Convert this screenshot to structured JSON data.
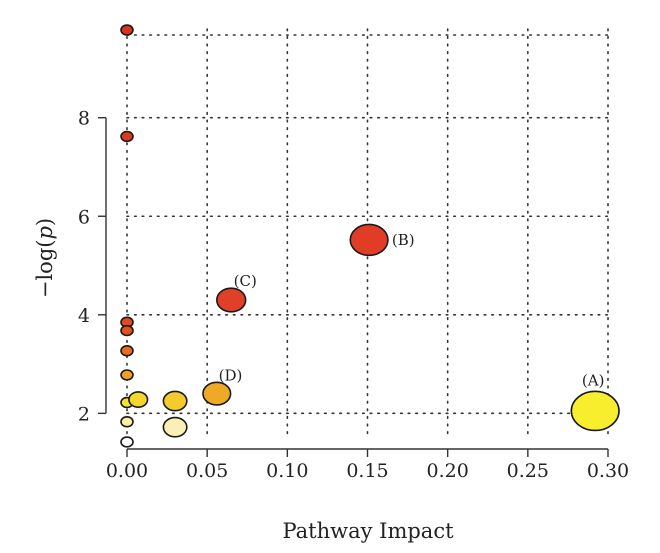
{
  "chart_data": {
    "type": "scatter",
    "title": "",
    "xlabel": "Pathway Impact",
    "ylabel_prefix": "−log(",
    "ylabel_var": "p",
    "ylabel_suffix": ")",
    "xlim": [
      0,
      0.3
    ],
    "ylim": [
      1.5,
      9.8
    ],
    "grid": true,
    "grid_style": "dotted",
    "x_ticks": [
      0.0,
      0.05,
      0.1,
      0.15,
      0.2,
      0.25,
      0.3
    ],
    "x_tick_labels": [
      "0.00",
      "0.05",
      "0.10",
      "0.15",
      "0.20",
      "0.25",
      "0.30"
    ],
    "y_ticks": [
      2,
      4,
      6,
      8
    ],
    "y_tick_labels": [
      "2",
      "4",
      "6",
      "8"
    ],
    "bubble_size_encodes": "Pathway Impact",
    "bubble_color_encodes": "-log(p)",
    "points": [
      {
        "x": 0.0,
        "y": 9.78,
        "size": 0.0,
        "color": "#d9341f",
        "label": ""
      },
      {
        "x": 0.0,
        "y": 7.62,
        "size": 0.0,
        "color": "#dc3a20",
        "label": ""
      },
      {
        "x": 0.0,
        "y": 3.85,
        "size": 0.0,
        "color": "#e44a1e",
        "label": ""
      },
      {
        "x": 0.0,
        "y": 3.68,
        "size": 0.0,
        "color": "#e5511e",
        "label": ""
      },
      {
        "x": 0.0,
        "y": 3.27,
        "size": 0.0,
        "color": "#ea6a1f",
        "label": ""
      },
      {
        "x": 0.0,
        "y": 2.78,
        "size": 0.0,
        "color": "#f0a125",
        "label": ""
      },
      {
        "x": 0.0,
        "y": 2.22,
        "size": 0.0,
        "color": "#f7e531",
        "label": ""
      },
      {
        "x": 0.0,
        "y": 1.83,
        "size": 0.0,
        "color": "#f9f0a2",
        "label": ""
      },
      {
        "x": 0.0,
        "y": 1.42,
        "size": 0.0,
        "color": "#ffffff",
        "label": ""
      },
      {
        "x": 0.007,
        "y": 2.28,
        "size": 0.01,
        "color": "#f5d72c",
        "label": ""
      },
      {
        "x": 0.03,
        "y": 2.25,
        "size": 0.03,
        "color": "#f3cc2b",
        "label": ""
      },
      {
        "x": 0.03,
        "y": 1.72,
        "size": 0.03,
        "color": "#f9f0b8",
        "label": ""
      },
      {
        "x": 0.056,
        "y": 2.4,
        "size": 0.056,
        "color": "#eeaa27",
        "label": "(D)"
      },
      {
        "x": 0.065,
        "y": 4.3,
        "size": 0.065,
        "color": "#e0402a",
        "label": "(C)"
      },
      {
        "x": 0.151,
        "y": 5.52,
        "size": 0.151,
        "color": "#e13d26",
        "label": "(B)"
      },
      {
        "x": 0.292,
        "y": 2.05,
        "size": 0.292,
        "color": "#f8ee2e",
        "label": "(A)"
      }
    ]
  }
}
